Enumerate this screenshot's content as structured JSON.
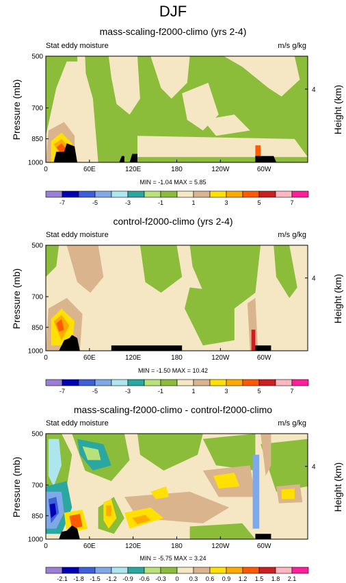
{
  "figure_title": "DJF",
  "chart_data": [
    {
      "type": "heatmap",
      "title": "mass-scaling-f2000-climo (yrs 2-4)",
      "left_subtitle": "Stat eddy moisture",
      "right_subtitle": "m/s g/kg",
      "ylabel": "Pressure (mb)",
      "ylabel_right": "Height (km)",
      "x_ticks": [
        "0",
        "60E",
        "120E",
        "180",
        "120W",
        "60W"
      ],
      "y_ticks": [
        "500",
        "700",
        "850",
        "1000"
      ],
      "y_right_ticks": [
        "4"
      ],
      "min_max_label": "MIN = -1.04  MAX =  5.85",
      "min": -1.04,
      "max": 5.85,
      "colorbar_labels": [
        "-7",
        "-5",
        "-3",
        "-1",
        "1",
        "3",
        "5",
        "7"
      ],
      "colorbar_levels": [
        -8,
        -7,
        -6,
        -5,
        -4,
        -3,
        -2,
        -1,
        0,
        1,
        2,
        3,
        4,
        5,
        6,
        7,
        8
      ]
    },
    {
      "type": "heatmap",
      "title": "control-f2000-climo (yrs 2-4)",
      "left_subtitle": "Stat eddy moisture",
      "right_subtitle": "m/s g/kg",
      "ylabel": "Pressure (mb)",
      "ylabel_right": "Height (km)",
      "x_ticks": [
        "0",
        "60E",
        "120E",
        "180",
        "120W",
        "60W"
      ],
      "y_ticks": [
        "500",
        "700",
        "850",
        "1000"
      ],
      "y_right_ticks": [
        "4"
      ],
      "min_max_label": "MIN = -1.50  MAX = 10.42",
      "min": -1.5,
      "max": 10.42,
      "colorbar_labels": [
        "-7",
        "-5",
        "-3",
        "-1",
        "1",
        "3",
        "5",
        "7"
      ],
      "colorbar_levels": [
        -8,
        -7,
        -6,
        -5,
        -4,
        -3,
        -2,
        -1,
        0,
        1,
        2,
        3,
        4,
        5,
        6,
        7,
        8
      ]
    },
    {
      "type": "heatmap",
      "title": "mass-scaling-f2000-climo - control-f2000-climo",
      "left_subtitle": "Stat eddy moisture",
      "right_subtitle": "m/s g/kg",
      "ylabel": "Pressure (mb)",
      "ylabel_right": "Height (km)",
      "x_ticks": [
        "0",
        "60E",
        "120E",
        "180",
        "120W",
        "60W"
      ],
      "y_ticks": [
        "500",
        "700",
        "850",
        "1000"
      ],
      "y_right_ticks": [
        "4"
      ],
      "min_max_label": "MIN = -5.75  MAX =  3.24",
      "min": -5.75,
      "max": 3.24,
      "colorbar_labels": [
        "-2.1",
        "-1.8",
        "-1.5",
        "-1.2",
        "-0.9",
        "-0.6",
        "-0.3",
        "0",
        "0.3",
        "0.6",
        "0.9",
        "1.2",
        "1.5",
        "1.8",
        "2.1"
      ],
      "colorbar_levels": [
        -2.4,
        -2.1,
        -1.8,
        -1.5,
        -1.2,
        -0.9,
        -0.6,
        -0.3,
        0,
        0.3,
        0.6,
        0.9,
        1.2,
        1.5,
        1.8,
        2.1,
        2.4
      ]
    }
  ],
  "colors": {
    "palette": [
      "#9a7fd6",
      "#0000b4",
      "#3d5fd8",
      "#7fa8e8",
      "#aee6f0",
      "#2aa7a0",
      "#b7e27a",
      "#8bbd3a",
      "#f5e6c4",
      "#d9b48c",
      "#ffe000",
      "#ffaa00",
      "#ff5a00",
      "#cc2020",
      "#ffb6c1",
      "#ff1f9a"
    ],
    "neutral": "#f5e6c4",
    "green": "#8bbd3a",
    "terrain": "#000000"
  }
}
